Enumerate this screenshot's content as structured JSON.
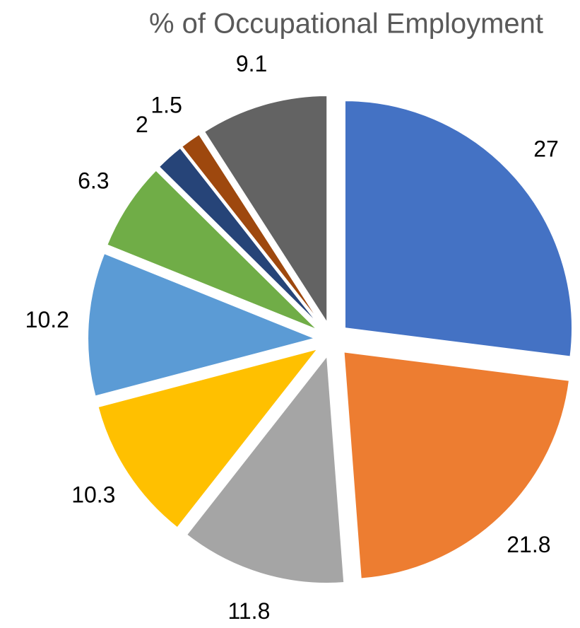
{
  "chart_data": {
    "type": "pie",
    "title": "% of Occupational Employment",
    "values": [
      27,
      21.8,
      11.8,
      10.3,
      10.2,
      6.3,
      2,
      1.5,
      9.1
    ],
    "colors": [
      "#4472c4",
      "#ed7d31",
      "#a5a5a5",
      "#ffc000",
      "#5b9bd5",
      "#70ad47",
      "#264478",
      "#9e480e",
      "#636363"
    ]
  }
}
